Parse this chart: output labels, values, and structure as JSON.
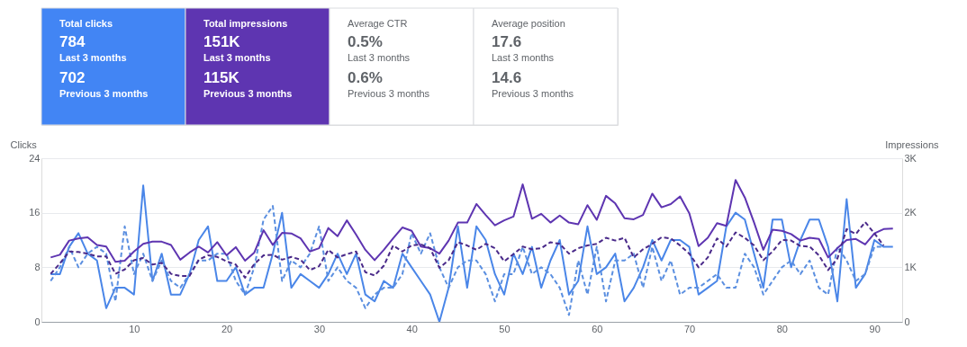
{
  "chart_data": [
    {
      "type": "other",
      "colors": [
        "#4285f4",
        "#5e35b1",
        "#ffffff",
        "#ffffff"
      ],
      "annotations": [
        "Total clicks",
        "784",
        "Last 3 months",
        "702",
        "Previous 3 months",
        "Total impressions",
        "151K",
        "Last 3 months",
        "115K",
        "Previous 3 months",
        "Average CTR",
        "0.5%",
        "Last 3 months",
        "0.6%",
        "Previous 3 months",
        "Average position",
        "17.6",
        "Last 3 months",
        "14.6",
        "Previous 3 months"
      ]
    },
    {
      "type": "line",
      "ylabel": "Clicks",
      "y2label": "Impressions",
      "grid": "y",
      "x": [
        1,
        2,
        3,
        4,
        5,
        6,
        7,
        8,
        9,
        10,
        11,
        12,
        13,
        14,
        15,
        16,
        17,
        18,
        19,
        20,
        21,
        22,
        23,
        24,
        25,
        26,
        27,
        28,
        29,
        30,
        31,
        32,
        33,
        34,
        35,
        36,
        37,
        38,
        39,
        40,
        41,
        42,
        43,
        44,
        45,
        46,
        47,
        48,
        49,
        50,
        51,
        52,
        53,
        54,
        55,
        56,
        57,
        58,
        59,
        60,
        61,
        62,
        63,
        64,
        65,
        66,
        67,
        68,
        69,
        70,
        71,
        72,
        73,
        74,
        75,
        76,
        77,
        78,
        79,
        80,
        81,
        82,
        83,
        84,
        85,
        86,
        87,
        88,
        89,
        90,
        91,
        92
      ],
      "xlim": [
        0,
        93
      ],
      "xticks": [
        10,
        20,
        30,
        40,
        50,
        60,
        70,
        80,
        90
      ],
      "ylim": [
        0,
        24
      ],
      "yticks": [
        0,
        8,
        16,
        24
      ],
      "y2lim": [
        0,
        3000
      ],
      "y2ticks": [
        0,
        {
          "value": 1000,
          "label": "1K"
        },
        {
          "value": 2000,
          "label": "2K"
        },
        {
          "value": 3000,
          "label": "3K"
        }
      ],
      "series": [
        {
          "color": "#4a86e8",
          "axis": "y",
          "line_style": "solid",
          "values": [
            7,
            7,
            11,
            13,
            10,
            9,
            2,
            5,
            5,
            4,
            20,
            6,
            10,
            4,
            4,
            7,
            12,
            14,
            6,
            6,
            8,
            4,
            5,
            5,
            10,
            16,
            5,
            7,
            6,
            5,
            7,
            10,
            7,
            10,
            4,
            3,
            6,
            5,
            10,
            8,
            6,
            4,
            0,
            5,
            14,
            5,
            14,
            12,
            7,
            4,
            10,
            7,
            11,
            5,
            9,
            12,
            4,
            6,
            14,
            7,
            8,
            10,
            3,
            5,
            8,
            12,
            9,
            12,
            12,
            11,
            4,
            5,
            6,
            14,
            16,
            15,
            10,
            5,
            15,
            15,
            8,
            12,
            15,
            15,
            11,
            3,
            18,
            5,
            7,
            12,
            11,
            11
          ]
        },
        {
          "color": "#5b8fe0",
          "axis": "y",
          "line_style": "dashed",
          "values": [
            6,
            8,
            11,
            8,
            10,
            11,
            10,
            3,
            14,
            7,
            10,
            6,
            9,
            6,
            5,
            7,
            9,
            9,
            10,
            10,
            6,
            4,
            8,
            15,
            17,
            6,
            9,
            8,
            10,
            14,
            6,
            8,
            6,
            5,
            2,
            4,
            5,
            5,
            7,
            13,
            10,
            13,
            8,
            5,
            8,
            9,
            9,
            7,
            3,
            7,
            7,
            11,
            7,
            8,
            7,
            5,
            1,
            9,
            4,
            11,
            3,
            9,
            9,
            10,
            5,
            11,
            6,
            9,
            4,
            5,
            5,
            6,
            7,
            5,
            5,
            10,
            8,
            4,
            6,
            8,
            9,
            7,
            9,
            5,
            4,
            11,
            9,
            6,
            7,
            11,
            11,
            null
          ]
        },
        {
          "color": "#5e35b1",
          "axis": "y2",
          "line_style": "solid",
          "values": [
            1180,
            1230,
            1490,
            1530,
            1550,
            1410,
            1380,
            1100,
            1120,
            1290,
            1430,
            1470,
            1470,
            1410,
            1140,
            1270,
            1380,
            1270,
            1460,
            1220,
            1370,
            1120,
            1270,
            1680,
            1410,
            1630,
            1620,
            1530,
            1290,
            1350,
            1720,
            1570,
            1860,
            1600,
            1320,
            1130,
            1320,
            1530,
            1730,
            1670,
            1380,
            1350,
            1250,
            1490,
            1820,
            1820,
            2160,
            1960,
            1770,
            1860,
            1930,
            2520,
            1890,
            1980,
            1820,
            1950,
            1820,
            1790,
            2140,
            1870,
            2310,
            2170,
            1900,
            1880,
            1960,
            2350,
            2100,
            2160,
            2300,
            1990,
            1390,
            1540,
            1810,
            1760,
            2600,
            2280,
            1820,
            1320,
            1690,
            1670,
            1610,
            1490,
            1540,
            1520,
            1180,
            1350,
            1500,
            1520,
            1420,
            1620,
            1700,
            1710
          ]
        },
        {
          "color": "#4a2a8a",
          "axis": "y2",
          "line_style": "dashed",
          "values": [
            880,
            1070,
            1290,
            1280,
            1250,
            1200,
            1200,
            880,
            960,
            1130,
            1170,
            1050,
            1080,
            880,
            840,
            840,
            1140,
            1220,
            1190,
            1110,
            1050,
            810,
            1060,
            1220,
            1230,
            1140,
            1190,
            1140,
            950,
            1020,
            1320,
            1180,
            1240,
            1290,
            910,
            850,
            1030,
            1400,
            1290,
            1400,
            1420,
            1350,
            990,
            1130,
            1460,
            1400,
            1320,
            1430,
            1350,
            1110,
            1240,
            1380,
            1330,
            1350,
            1460,
            1430,
            1250,
            1350,
            1400,
            1430,
            1540,
            1490,
            1540,
            1180,
            1330,
            1430,
            1550,
            1530,
            1400,
            1250,
            1000,
            1180,
            1530,
            1380,
            1640,
            1540,
            1400,
            1130,
            1290,
            1500,
            1490,
            1390,
            1380,
            1220,
            950,
            1160,
            1700,
            1610,
            1830,
            1620,
            1400,
            null
          ]
        }
      ]
    }
  ]
}
